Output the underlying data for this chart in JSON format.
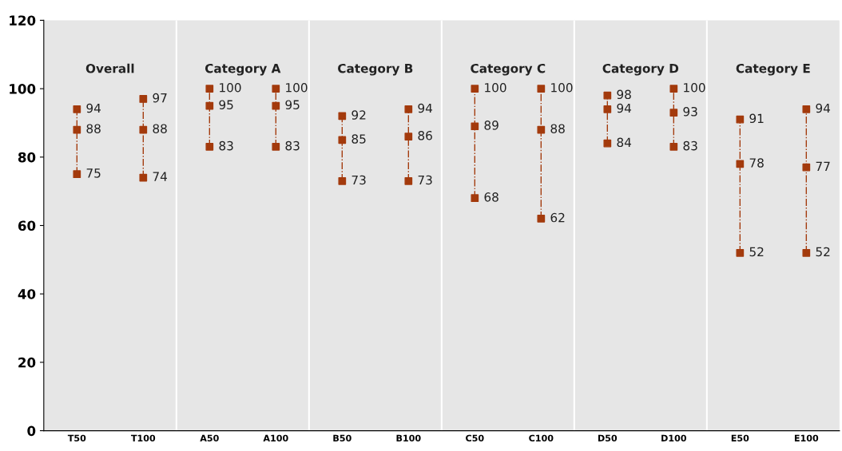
{
  "chart_data": {
    "type": "scatter",
    "categories": [
      "T50",
      "T100",
      "A50",
      "A100",
      "B50",
      "B100",
      "C50",
      "C100",
      "D50",
      "D100",
      "E50",
      "E100"
    ],
    "series": [
      {
        "color": "#a33a0c",
        "values": [
          94,
          97,
          100,
          100,
          92,
          94,
          100,
          100,
          98,
          100,
          91,
          94
        ]
      },
      {
        "color": "#a33a0c",
        "values": [
          88,
          88,
          95,
          95,
          85,
          86,
          89,
          88,
          94,
          93,
          78,
          77
        ]
      },
      {
        "color": "#a33a0c",
        "values": [
          75,
          74,
          83,
          83,
          73,
          73,
          68,
          62,
          84,
          83,
          52,
          52
        ]
      }
    ],
    "annotations": [
      "Overall",
      "Category A",
      "Category B",
      "Category C",
      "Category D",
      "Category E"
    ],
    "ylim": [
      0,
      120
    ],
    "yticks": [
      0,
      20,
      40,
      60,
      80,
      100,
      120
    ],
    "marker": "square",
    "line_style": "dashed",
    "data_labels": true
  }
}
